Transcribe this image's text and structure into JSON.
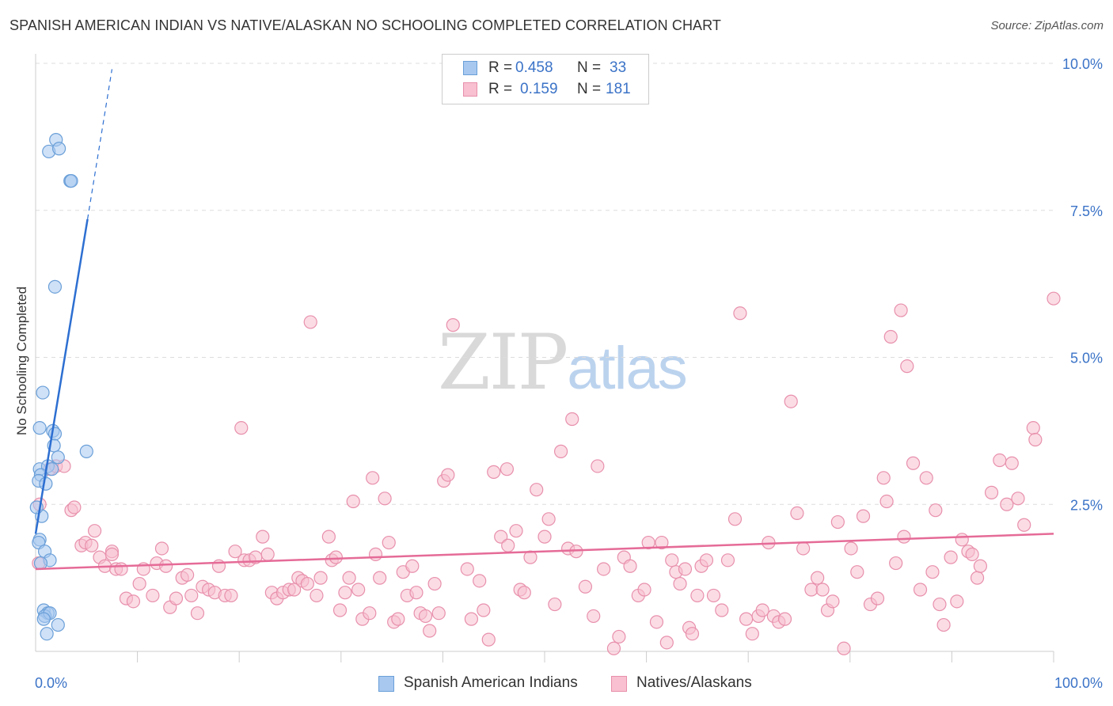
{
  "title": "SPANISH AMERICAN INDIAN VS NATIVE/ALASKAN NO SCHOOLING COMPLETED CORRELATION CHART",
  "source": "Source: ZipAtlas.com",
  "watermark": {
    "zip": "ZIP",
    "atlas": "atlas"
  },
  "legend": {
    "rows": [
      {
        "r_label": "R =",
        "r_value": "0.458",
        "n_label": "N =",
        "n_value": "33",
        "color": "#a8c8f0",
        "border": "#6a9fd8"
      },
      {
        "r_label": "R =",
        "r_value": "0.159",
        "n_label": "N =",
        "n_value": "181",
        "color": "#f8c0d0",
        "border": "#e890ac"
      }
    ]
  },
  "bottom_legend": [
    {
      "label": "Spanish American Indians",
      "color": "#a8c8f0",
      "border": "#6a9fd8"
    },
    {
      "label": "Natives/Alaskans",
      "color": "#f8c0d0",
      "border": "#e890ac"
    }
  ],
  "chart_data": {
    "type": "scatter",
    "title": "SPANISH AMERICAN INDIAN VS NATIVE/ALASKAN NO SCHOOLING COMPLETED CORRELATION CHART",
    "xlabel": "",
    "ylabel": "No Schooling Completed",
    "xlim": [
      0,
      100
    ],
    "ylim": [
      0,
      10
    ],
    "x_tick_labels": [
      "0.0%",
      "100.0%"
    ],
    "y_ticks": [
      2.5,
      5.0,
      7.5,
      10.0
    ],
    "y_tick_labels": [
      "2.5%",
      "5.0%",
      "7.5%",
      "10.0%"
    ],
    "grid": true,
    "series": [
      {
        "name": "Spanish American Indians",
        "color": "#6a9fd8",
        "fill": "#a8c8f0",
        "r": 0.458,
        "n": 33,
        "trend": {
          "x0": 0.0,
          "y0": 2.0,
          "x1": 5.1,
          "y1": 7.35,
          "dash_to_x": 7.5,
          "dash_to_y": 9.9
        },
        "points": [
          [
            1.3,
            8.5
          ],
          [
            2.0,
            8.7
          ],
          [
            2.3,
            8.55
          ],
          [
            3.4,
            8.0
          ],
          [
            3.5,
            8.0
          ],
          [
            1.9,
            6.2
          ],
          [
            0.7,
            4.4
          ],
          [
            0.4,
            3.8
          ],
          [
            1.7,
            3.75
          ],
          [
            1.9,
            3.7
          ],
          [
            1.8,
            3.5
          ],
          [
            5.0,
            3.4
          ],
          [
            2.2,
            3.3
          ],
          [
            0.4,
            3.1
          ],
          [
            1.2,
            3.15
          ],
          [
            1.6,
            3.1
          ],
          [
            0.5,
            3.0
          ],
          [
            0.3,
            2.9
          ],
          [
            1.0,
            2.85
          ],
          [
            0.6,
            2.3
          ],
          [
            0.4,
            1.9
          ],
          [
            0.3,
            1.85
          ],
          [
            0.9,
            1.7
          ],
          [
            1.4,
            1.55
          ],
          [
            0.5,
            1.5
          ],
          [
            0.8,
            0.7
          ],
          [
            1.2,
            0.65
          ],
          [
            0.9,
            0.6
          ],
          [
            1.4,
            0.65
          ],
          [
            0.8,
            0.55
          ],
          [
            2.2,
            0.45
          ],
          [
            1.1,
            0.3
          ],
          [
            0.1,
            2.45
          ]
        ]
      },
      {
        "name": "Natives/Alaskans",
        "color": "#e890ac",
        "fill": "#f8c0d0",
        "r": 0.159,
        "n": 181,
        "trend": {
          "x0": 0.0,
          "y0": 1.4,
          "x1": 100.0,
          "y1": 2.0
        },
        "points": [
          [
            0.4,
            2.5
          ],
          [
            0.3,
            1.5
          ],
          [
            1.4,
            3.1
          ],
          [
            2.0,
            3.15
          ],
          [
            2.8,
            3.15
          ],
          [
            3.5,
            2.4
          ],
          [
            3.8,
            2.45
          ],
          [
            5.8,
            2.05
          ],
          [
            4.5,
            1.8
          ],
          [
            4.9,
            1.85
          ],
          [
            5.5,
            1.8
          ],
          [
            6.3,
            1.6
          ],
          [
            7.5,
            1.7
          ],
          [
            6.8,
            1.45
          ],
          [
            7.9,
            1.4
          ],
          [
            8.4,
            1.4
          ],
          [
            7.5,
            1.65
          ],
          [
            8.9,
            0.9
          ],
          [
            9.6,
            0.85
          ],
          [
            10.2,
            1.15
          ],
          [
            10.6,
            1.4
          ],
          [
            11.5,
            0.95
          ],
          [
            11.9,
            1.5
          ],
          [
            12.4,
            1.75
          ],
          [
            12.8,
            1.45
          ],
          [
            13.2,
            0.75
          ],
          [
            13.8,
            0.9
          ],
          [
            14.4,
            1.25
          ],
          [
            14.9,
            1.3
          ],
          [
            15.3,
            0.95
          ],
          [
            15.9,
            0.65
          ],
          [
            16.4,
            1.1
          ],
          [
            17.0,
            1.05
          ],
          [
            17.6,
            1.0
          ],
          [
            18.0,
            1.45
          ],
          [
            18.6,
            0.95
          ],
          [
            19.2,
            0.95
          ],
          [
            19.6,
            1.7
          ],
          [
            20.2,
            3.8
          ],
          [
            20.5,
            1.55
          ],
          [
            21.0,
            1.55
          ],
          [
            21.6,
            1.6
          ],
          [
            22.3,
            1.95
          ],
          [
            22.8,
            1.65
          ],
          [
            23.2,
            1.0
          ],
          [
            23.7,
            0.9
          ],
          [
            24.3,
            1.0
          ],
          [
            24.9,
            1.05
          ],
          [
            25.4,
            1.05
          ],
          [
            25.8,
            1.25
          ],
          [
            26.2,
            1.2
          ],
          [
            26.7,
            1.15
          ],
          [
            27.0,
            5.6
          ],
          [
            27.6,
            0.95
          ],
          [
            28.0,
            1.25
          ],
          [
            28.8,
            1.95
          ],
          [
            29.1,
            1.55
          ],
          [
            29.5,
            1.6
          ],
          [
            29.9,
            0.7
          ],
          [
            30.4,
            1.0
          ],
          [
            30.8,
            1.25
          ],
          [
            31.2,
            2.55
          ],
          [
            31.7,
            1.05
          ],
          [
            32.1,
            0.55
          ],
          [
            32.8,
            0.65
          ],
          [
            33.4,
            1.65
          ],
          [
            33.1,
            2.95
          ],
          [
            33.8,
            1.25
          ],
          [
            34.3,
            2.6
          ],
          [
            34.7,
            1.85
          ],
          [
            35.2,
            0.5
          ],
          [
            35.6,
            0.55
          ],
          [
            36.1,
            1.35
          ],
          [
            36.5,
            0.95
          ],
          [
            37.0,
            1.45
          ],
          [
            37.4,
            1.0
          ],
          [
            37.8,
            0.65
          ],
          [
            38.3,
            0.6
          ],
          [
            38.7,
            0.35
          ],
          [
            39.2,
            1.15
          ],
          [
            39.6,
            0.65
          ],
          [
            40.1,
            2.9
          ],
          [
            40.5,
            3.0
          ],
          [
            41.0,
            5.55
          ],
          [
            42.4,
            1.4
          ],
          [
            42.8,
            0.55
          ],
          [
            43.6,
            1.2
          ],
          [
            44.0,
            0.7
          ],
          [
            44.5,
            0.2
          ],
          [
            45.0,
            3.05
          ],
          [
            46.3,
            3.1
          ],
          [
            45.7,
            1.95
          ],
          [
            46.4,
            1.8
          ],
          [
            47.2,
            2.05
          ],
          [
            47.6,
            1.05
          ],
          [
            48.0,
            1.0
          ],
          [
            48.6,
            1.6
          ],
          [
            49.2,
            2.75
          ],
          [
            50.0,
            1.95
          ],
          [
            50.4,
            2.25
          ],
          [
            51.0,
            0.8
          ],
          [
            51.6,
            3.4
          ],
          [
            52.3,
            1.75
          ],
          [
            52.7,
            3.95
          ],
          [
            53.1,
            1.7
          ],
          [
            54.0,
            1.1
          ],
          [
            54.8,
            0.6
          ],
          [
            55.2,
            3.15
          ],
          [
            55.8,
            1.4
          ],
          [
            56.8,
            0.05
          ],
          [
            57.3,
            0.25
          ],
          [
            57.8,
            1.6
          ],
          [
            58.4,
            1.45
          ],
          [
            59.2,
            0.95
          ],
          [
            59.8,
            1.05
          ],
          [
            60.2,
            1.85
          ],
          [
            61.0,
            0.5
          ],
          [
            61.5,
            1.85
          ],
          [
            62.0,
            0.15
          ],
          [
            62.5,
            1.55
          ],
          [
            62.9,
            1.35
          ],
          [
            63.3,
            1.15
          ],
          [
            63.8,
            1.4
          ],
          [
            64.2,
            0.4
          ],
          [
            64.5,
            0.3
          ],
          [
            65.0,
            0.95
          ],
          [
            65.4,
            1.45
          ],
          [
            65.9,
            1.55
          ],
          [
            66.6,
            0.95
          ],
          [
            67.4,
            0.7
          ],
          [
            68.0,
            1.55
          ],
          [
            68.7,
            2.25
          ],
          [
            69.2,
            5.75
          ],
          [
            69.8,
            0.55
          ],
          [
            70.4,
            0.3
          ],
          [
            71.0,
            0.6
          ],
          [
            71.4,
            0.7
          ],
          [
            72.0,
            1.85
          ],
          [
            72.5,
            0.6
          ],
          [
            73.0,
            0.5
          ],
          [
            73.6,
            0.55
          ],
          [
            74.2,
            4.25
          ],
          [
            74.8,
            2.35
          ],
          [
            75.4,
            1.75
          ],
          [
            76.2,
            1.05
          ],
          [
            76.8,
            1.25
          ],
          [
            77.3,
            1.05
          ],
          [
            77.8,
            0.7
          ],
          [
            78.3,
            0.85
          ],
          [
            78.8,
            2.2
          ],
          [
            79.4,
            0.05
          ],
          [
            80.1,
            1.75
          ],
          [
            80.7,
            1.35
          ],
          [
            81.3,
            2.3
          ],
          [
            82.0,
            0.8
          ],
          [
            82.7,
            0.9
          ],
          [
            83.3,
            2.95
          ],
          [
            83.6,
            2.55
          ],
          [
            84.0,
            5.35
          ],
          [
            84.5,
            1.5
          ],
          [
            85.0,
            5.8
          ],
          [
            85.6,
            4.85
          ],
          [
            85.3,
            1.95
          ],
          [
            86.2,
            3.2
          ],
          [
            86.9,
            1.05
          ],
          [
            87.5,
            2.95
          ],
          [
            88.1,
            1.35
          ],
          [
            88.4,
            2.4
          ],
          [
            88.8,
            0.8
          ],
          [
            89.2,
            0.45
          ],
          [
            89.9,
            1.6
          ],
          [
            90.5,
            0.85
          ],
          [
            91.0,
            1.9
          ],
          [
            91.6,
            1.7
          ],
          [
            92.0,
            1.65
          ],
          [
            92.5,
            1.25
          ],
          [
            92.8,
            1.45
          ],
          [
            93.9,
            2.7
          ],
          [
            94.7,
            3.25
          ],
          [
            95.4,
            2.5
          ],
          [
            95.9,
            3.2
          ],
          [
            96.5,
            2.6
          ],
          [
            97.1,
            2.15
          ],
          [
            98.0,
            3.8
          ],
          [
            98.2,
            3.6
          ],
          [
            100.0,
            6.0
          ]
        ]
      }
    ]
  }
}
